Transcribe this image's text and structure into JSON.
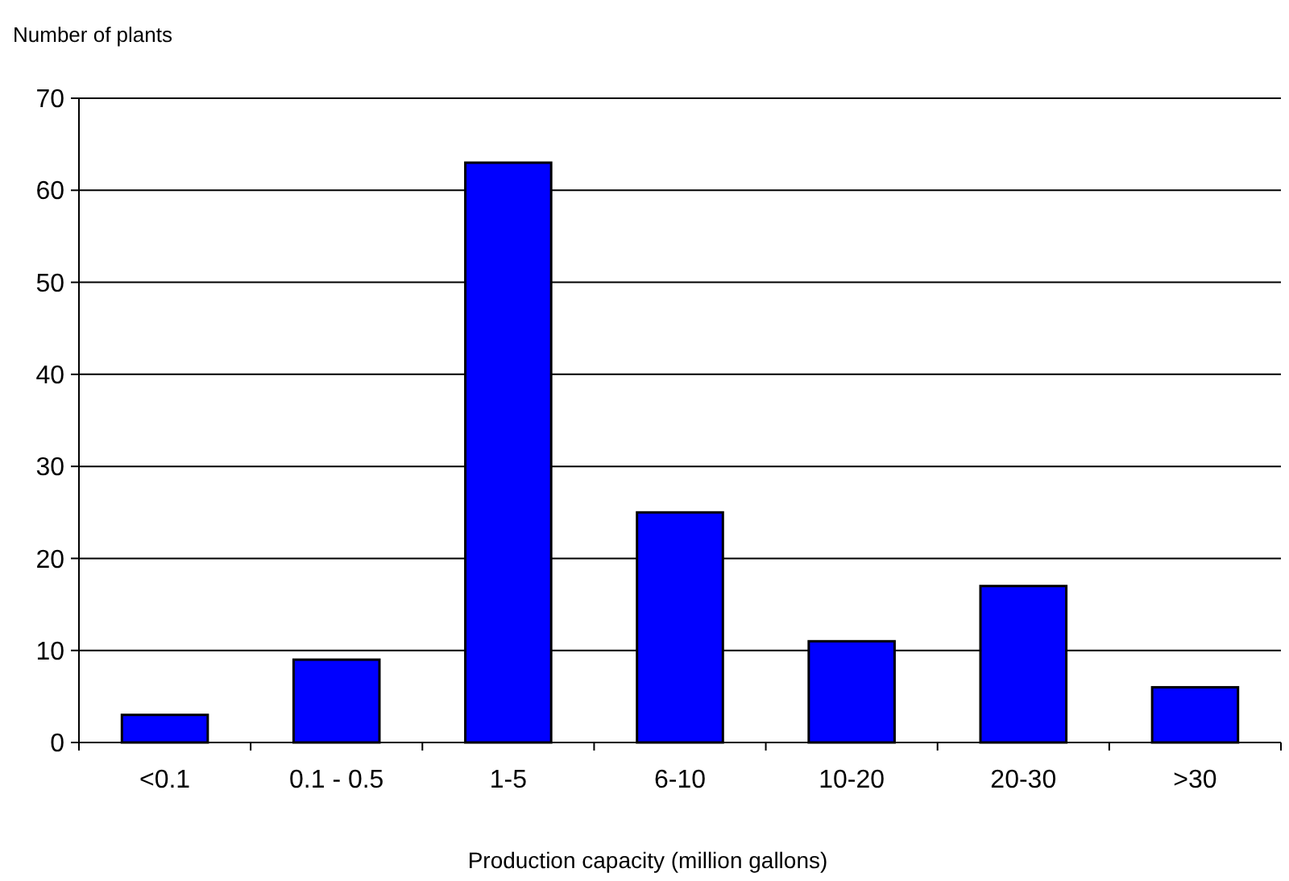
{
  "chart_data": {
    "type": "bar",
    "ylabel": "Number of plants",
    "xlabel": "Production capacity (million gallons)",
    "categories": [
      "<0.1",
      "0.1 - 0.5",
      "1-5",
      "6-10",
      "10-20",
      "20-30",
      ">30"
    ],
    "values": [
      3,
      9,
      63,
      25,
      11,
      17,
      6
    ],
    "color": "#0000ff",
    "ylim": [
      0,
      70
    ],
    "yticks": [
      0,
      10,
      20,
      30,
      40,
      50,
      60,
      70
    ],
    "grid": "y"
  }
}
